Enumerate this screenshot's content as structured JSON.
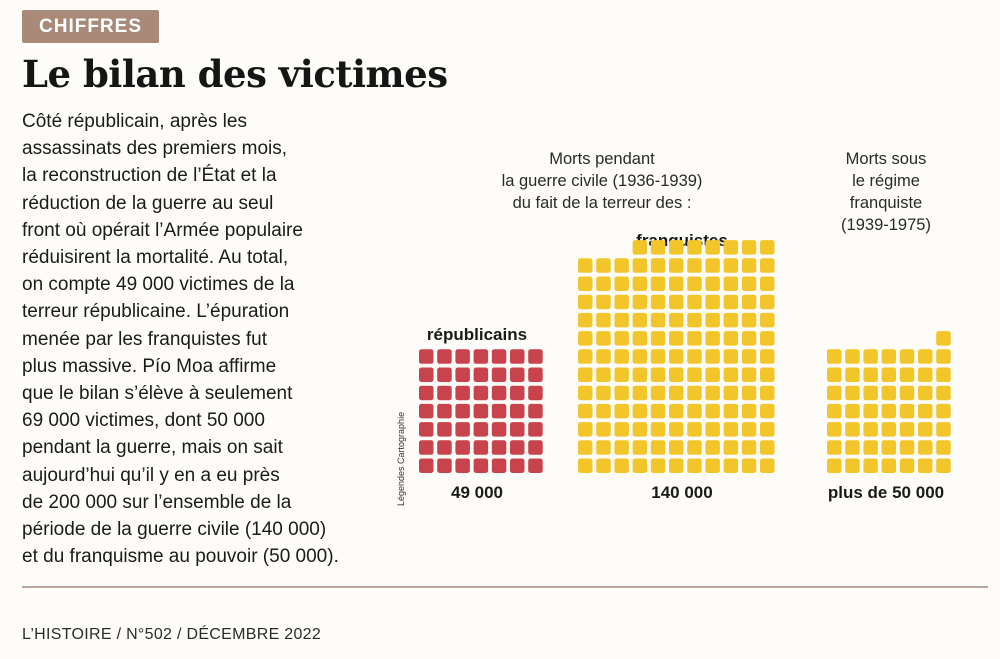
{
  "tag": "CHIFFRES",
  "title": "Le bilan des victimes",
  "body_lines": [
    "Côté républicain, après les",
    "assassinats des premiers mois,",
    "la reconstruction de l’État et la",
    "réduction de la guerre au seul",
    "front où opérait l’Armée populaire",
    "réduisirent la mortalité. Au total,",
    "on compte 49 000 victimes de la",
    "terreur républicaine. L’épuration",
    "menée par les franquistes fut",
    "plus massive. Pío Moa affirme",
    "que le bilan s’élève à seulement",
    "69 000 victimes, dont 50 000",
    "pendant la guerre, mais on sait",
    "aujourd’hui qu’il y en a eu près",
    "de 200 000 sur l’ensemble de la",
    "période de la guerre civile (140 000)",
    "et du franquisme au pouvoir (50 000)."
  ],
  "credit": "Légendes Cartographie",
  "footer": "L’HISTOIRE / N°502 / DÉCEMBRE 2022",
  "colors": {
    "republicains": "#c8434b",
    "franquistes": "#f2c62b",
    "tag_bg": "#a98a79",
    "rule": "#b9a79c"
  },
  "chart_data": {
    "type": "bar",
    "style": "unit squares (waffle)",
    "unit_note": "each square ≈ 1 000 victims",
    "group_titles": [
      {
        "lines": [
          "Morts pendant",
          "la guerre civile (1936-1939)",
          "du fait de la terreur des :"
        ]
      },
      {
        "lines": [
          "Morts sous",
          "le régime",
          "franquiste",
          "(1939-1975)"
        ]
      }
    ],
    "categories": [
      "républicains",
      "franquistes",
      ""
    ],
    "value_labels": [
      "49 000",
      "140 000",
      "plus de 50 000"
    ],
    "values": [
      49000,
      140000,
      50000
    ],
    "series_colors": [
      "#c8434b",
      "#f2c62b",
      "#f2c62b"
    ]
  }
}
